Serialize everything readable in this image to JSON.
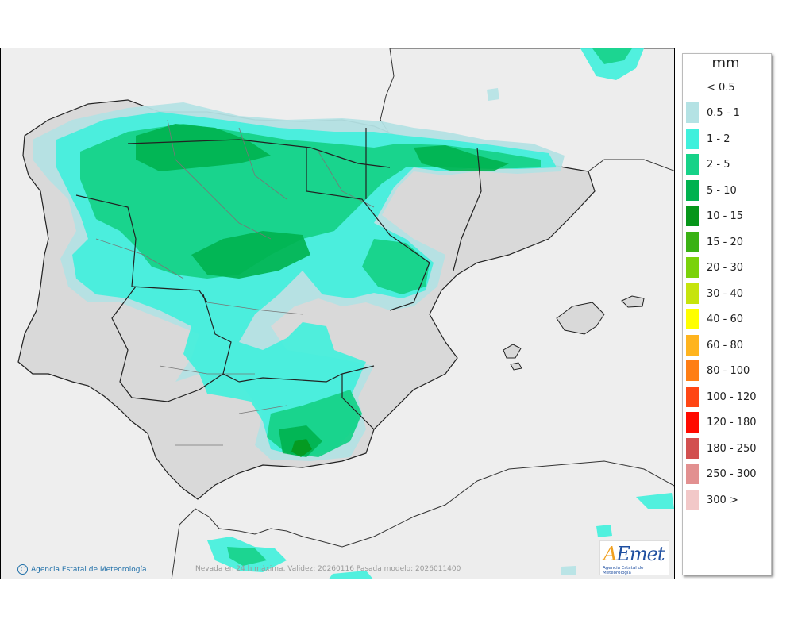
{
  "legend": {
    "unit": "mm",
    "classes": [
      {
        "label": "< 0.5",
        "color": "#ffffff"
      },
      {
        "label": "0.5 - 1",
        "color": "#b4e2e4"
      },
      {
        "label": "1 - 2",
        "color": "#3ff0dc"
      },
      {
        "label": "2 - 5",
        "color": "#16d288"
      },
      {
        "label": "5 - 10",
        "color": "#00b24f"
      },
      {
        "label": "10 - 15",
        "color": "#06961a"
      },
      {
        "label": "15 - 20",
        "color": "#3ab214"
      },
      {
        "label": "20 - 30",
        "color": "#7ad20a"
      },
      {
        "label": "30 - 40",
        "color": "#c6e40c"
      },
      {
        "label": "40 - 60",
        "color": "#ffff00"
      },
      {
        "label": "60 - 80",
        "color": "#ffb41e"
      },
      {
        "label": "80 - 100",
        "color": "#ff7e14"
      },
      {
        "label": "100 - 120",
        "color": "#ff4614"
      },
      {
        "label": "120 - 180",
        "color": "#ff0a00"
      },
      {
        "label": "180 - 250",
        "color": "#d25050"
      },
      {
        "label": "250 - 300",
        "color": "#e29090"
      },
      {
        "label": "300 >",
        "color": "#f2c8c8"
      }
    ]
  },
  "footer": {
    "copyright": "Agencia Estatal de Meteorología",
    "validity": "Nevada en 24 h máxima. Validez: 20260116 Pasada modelo: 2026011400"
  },
  "logo": {
    "word_accent": "A",
    "word_rest": "Emet",
    "subtitle": "Agencia Estatal de Meteorología"
  },
  "colors": {
    "sea": "#eeeeee",
    "land": "#d9d9d9",
    "foreign_land": "#ededed",
    "border": "#222222",
    "province_border": "#777777"
  }
}
